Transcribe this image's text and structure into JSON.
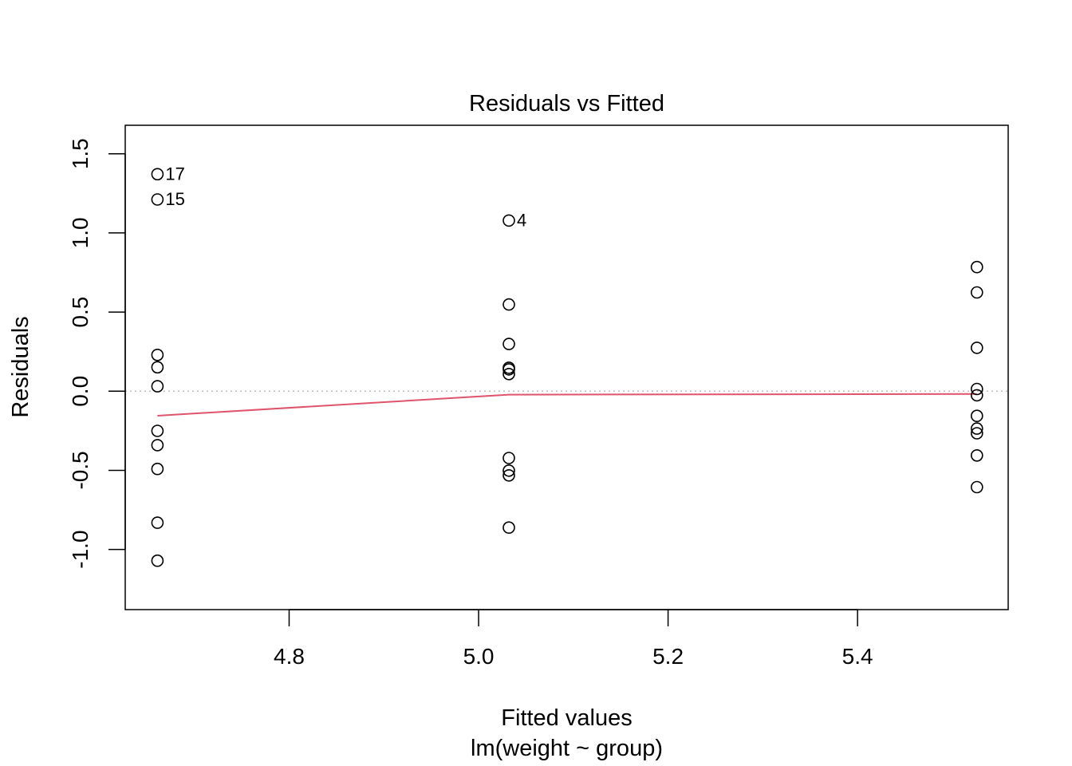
{
  "chart_data": {
    "type": "scatter",
    "title": "Residuals vs Fitted",
    "xlabel": "Fitted values",
    "subtitle": "lm(weight ~ group)",
    "ylabel": "Residuals",
    "xlim": [
      4.627,
      5.559
    ],
    "ylim": [
      -1.38,
      1.68
    ],
    "xticks": [
      4.8,
      5.0,
      5.2,
      5.4
    ],
    "xtick_labels": [
      "4.8",
      "5.0",
      "5.2",
      "5.4"
    ],
    "yticks": [
      -1.0,
      -0.5,
      0.0,
      0.5,
      1.0,
      1.5
    ],
    "ytick_labels": [
      "-1.0",
      "-0.5",
      "0.0",
      "0.5",
      "1.0",
      "1.5"
    ],
    "grid": false,
    "reference_line": {
      "y": 0.0,
      "color": "#bebebe",
      "style": "dotted"
    },
    "smoother": {
      "color": "#df536b",
      "x": [
        4.661,
        5.032,
        5.526
      ],
      "y": [
        -0.155,
        -0.022,
        -0.018
      ]
    },
    "points": [
      {
        "x": 4.661,
        "y": 1.371,
        "label": "17"
      },
      {
        "x": 4.661,
        "y": 1.211,
        "label": "15"
      },
      {
        "x": 4.661,
        "y": 0.229
      },
      {
        "x": 4.661,
        "y": 0.151
      },
      {
        "x": 4.661,
        "y": 0.031
      },
      {
        "x": 4.661,
        "y": -0.251
      },
      {
        "x": 4.661,
        "y": -0.341
      },
      {
        "x": 4.661,
        "y": -0.491
      },
      {
        "x": 4.661,
        "y": -0.831
      },
      {
        "x": 4.661,
        "y": -1.071
      },
      {
        "x": 5.032,
        "y": 1.078,
        "label": "4"
      },
      {
        "x": 5.032,
        "y": 0.548
      },
      {
        "x": 5.032,
        "y": 0.298
      },
      {
        "x": 5.032,
        "y": 0.148
      },
      {
        "x": 5.032,
        "y": 0.138
      },
      {
        "x": 5.032,
        "y": 0.108
      },
      {
        "x": 5.032,
        "y": -0.422
      },
      {
        "x": 5.032,
        "y": -0.502
      },
      {
        "x": 5.032,
        "y": -0.532
      },
      {
        "x": 5.032,
        "y": -0.862
      },
      {
        "x": 5.526,
        "y": 0.784
      },
      {
        "x": 5.526,
        "y": 0.624
      },
      {
        "x": 5.526,
        "y": 0.274
      },
      {
        "x": 5.526,
        "y": 0.014
      },
      {
        "x": 5.526,
        "y": -0.026
      },
      {
        "x": 5.526,
        "y": -0.156
      },
      {
        "x": 5.526,
        "y": -0.236
      },
      {
        "x": 5.526,
        "y": -0.266
      },
      {
        "x": 5.526,
        "y": -0.406
      },
      {
        "x": 5.526,
        "y": -0.606
      }
    ]
  }
}
